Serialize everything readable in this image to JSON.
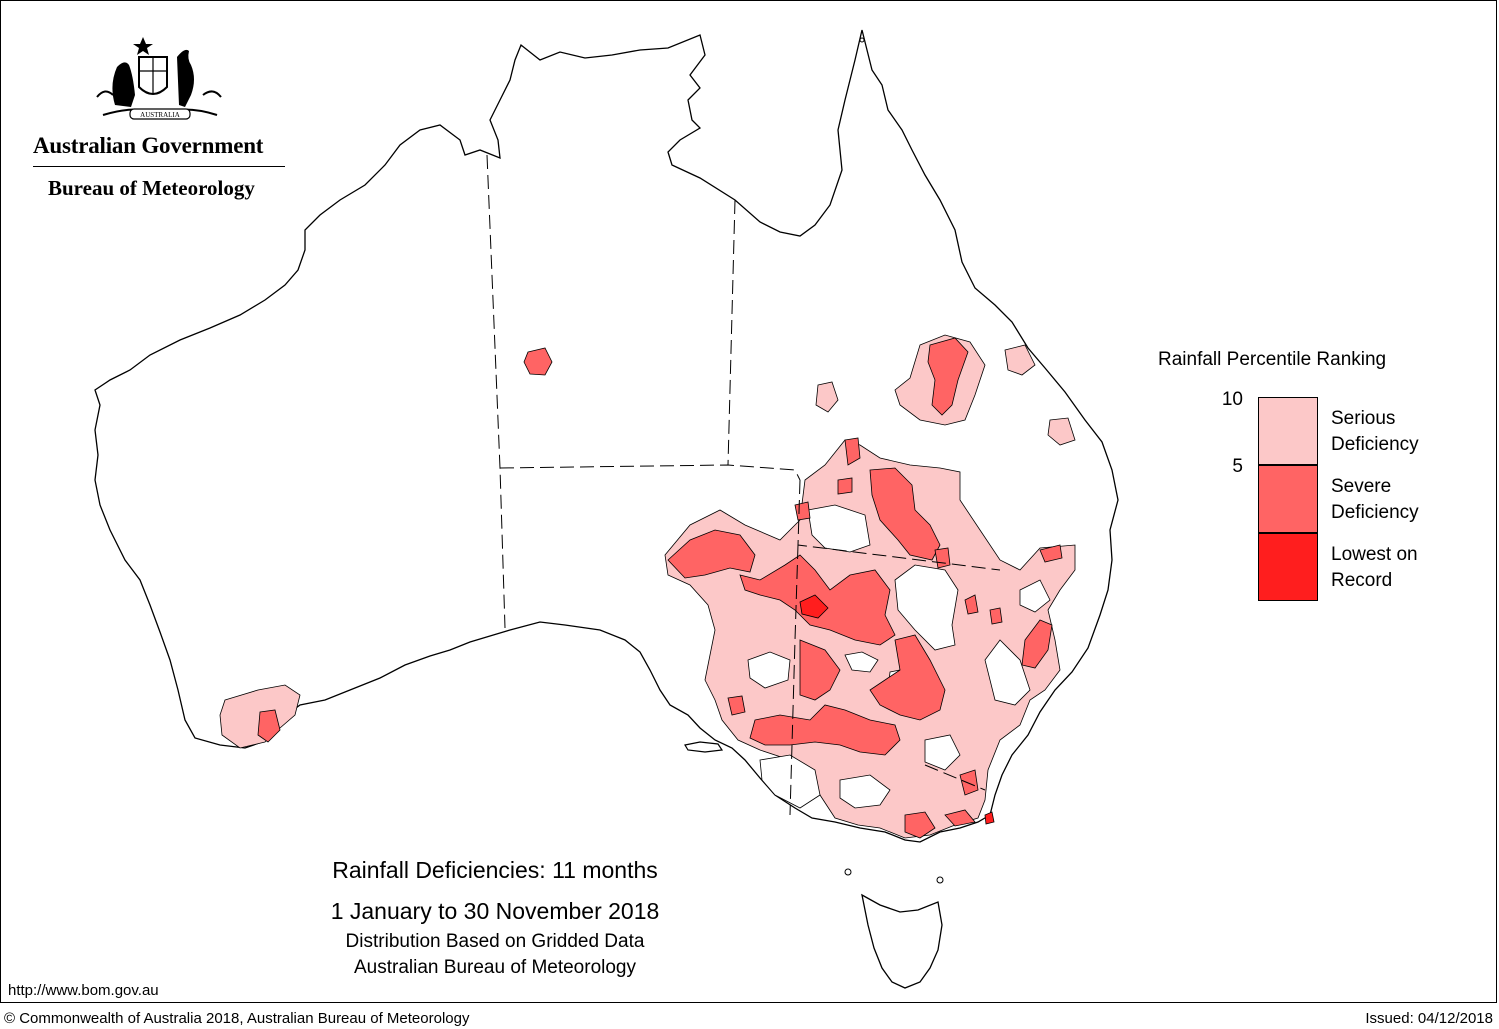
{
  "header": {
    "government": "Australian Government",
    "bureau": "Bureau of Meteorology",
    "crest_text": "AUSTRALIA"
  },
  "legend": {
    "title": "Rainfall Percentile Ranking",
    "ticks": [
      "10",
      "5"
    ],
    "items": [
      {
        "label_line1": "Serious",
        "label_line2": "Deficiency",
        "color": "#fcc8c8"
      },
      {
        "label_line1": "Severe",
        "label_line2": "Deficiency",
        "color": "#ff6464"
      },
      {
        "label_line1": "Lowest on",
        "label_line2": "Record",
        "color": "#ff1e1e"
      }
    ]
  },
  "caption": {
    "line1": "Rainfall Deficiencies: 11 months",
    "line2": "1 January to 30 November 2018",
    "line3": "Distribution Based on Gridded Data",
    "line4": "Australian Bureau of Meteorology"
  },
  "footer": {
    "url": "http://www.bom.gov.au",
    "copyright": "© Commonwealth of Australia 2018, Australian Bureau of Meteorology",
    "issued": "Issued: 04/12/2018"
  },
  "colors": {
    "serious": "#fcc8c8",
    "severe": "#ff6464",
    "lowest": "#ff1e1e",
    "outline": "#000000"
  }
}
